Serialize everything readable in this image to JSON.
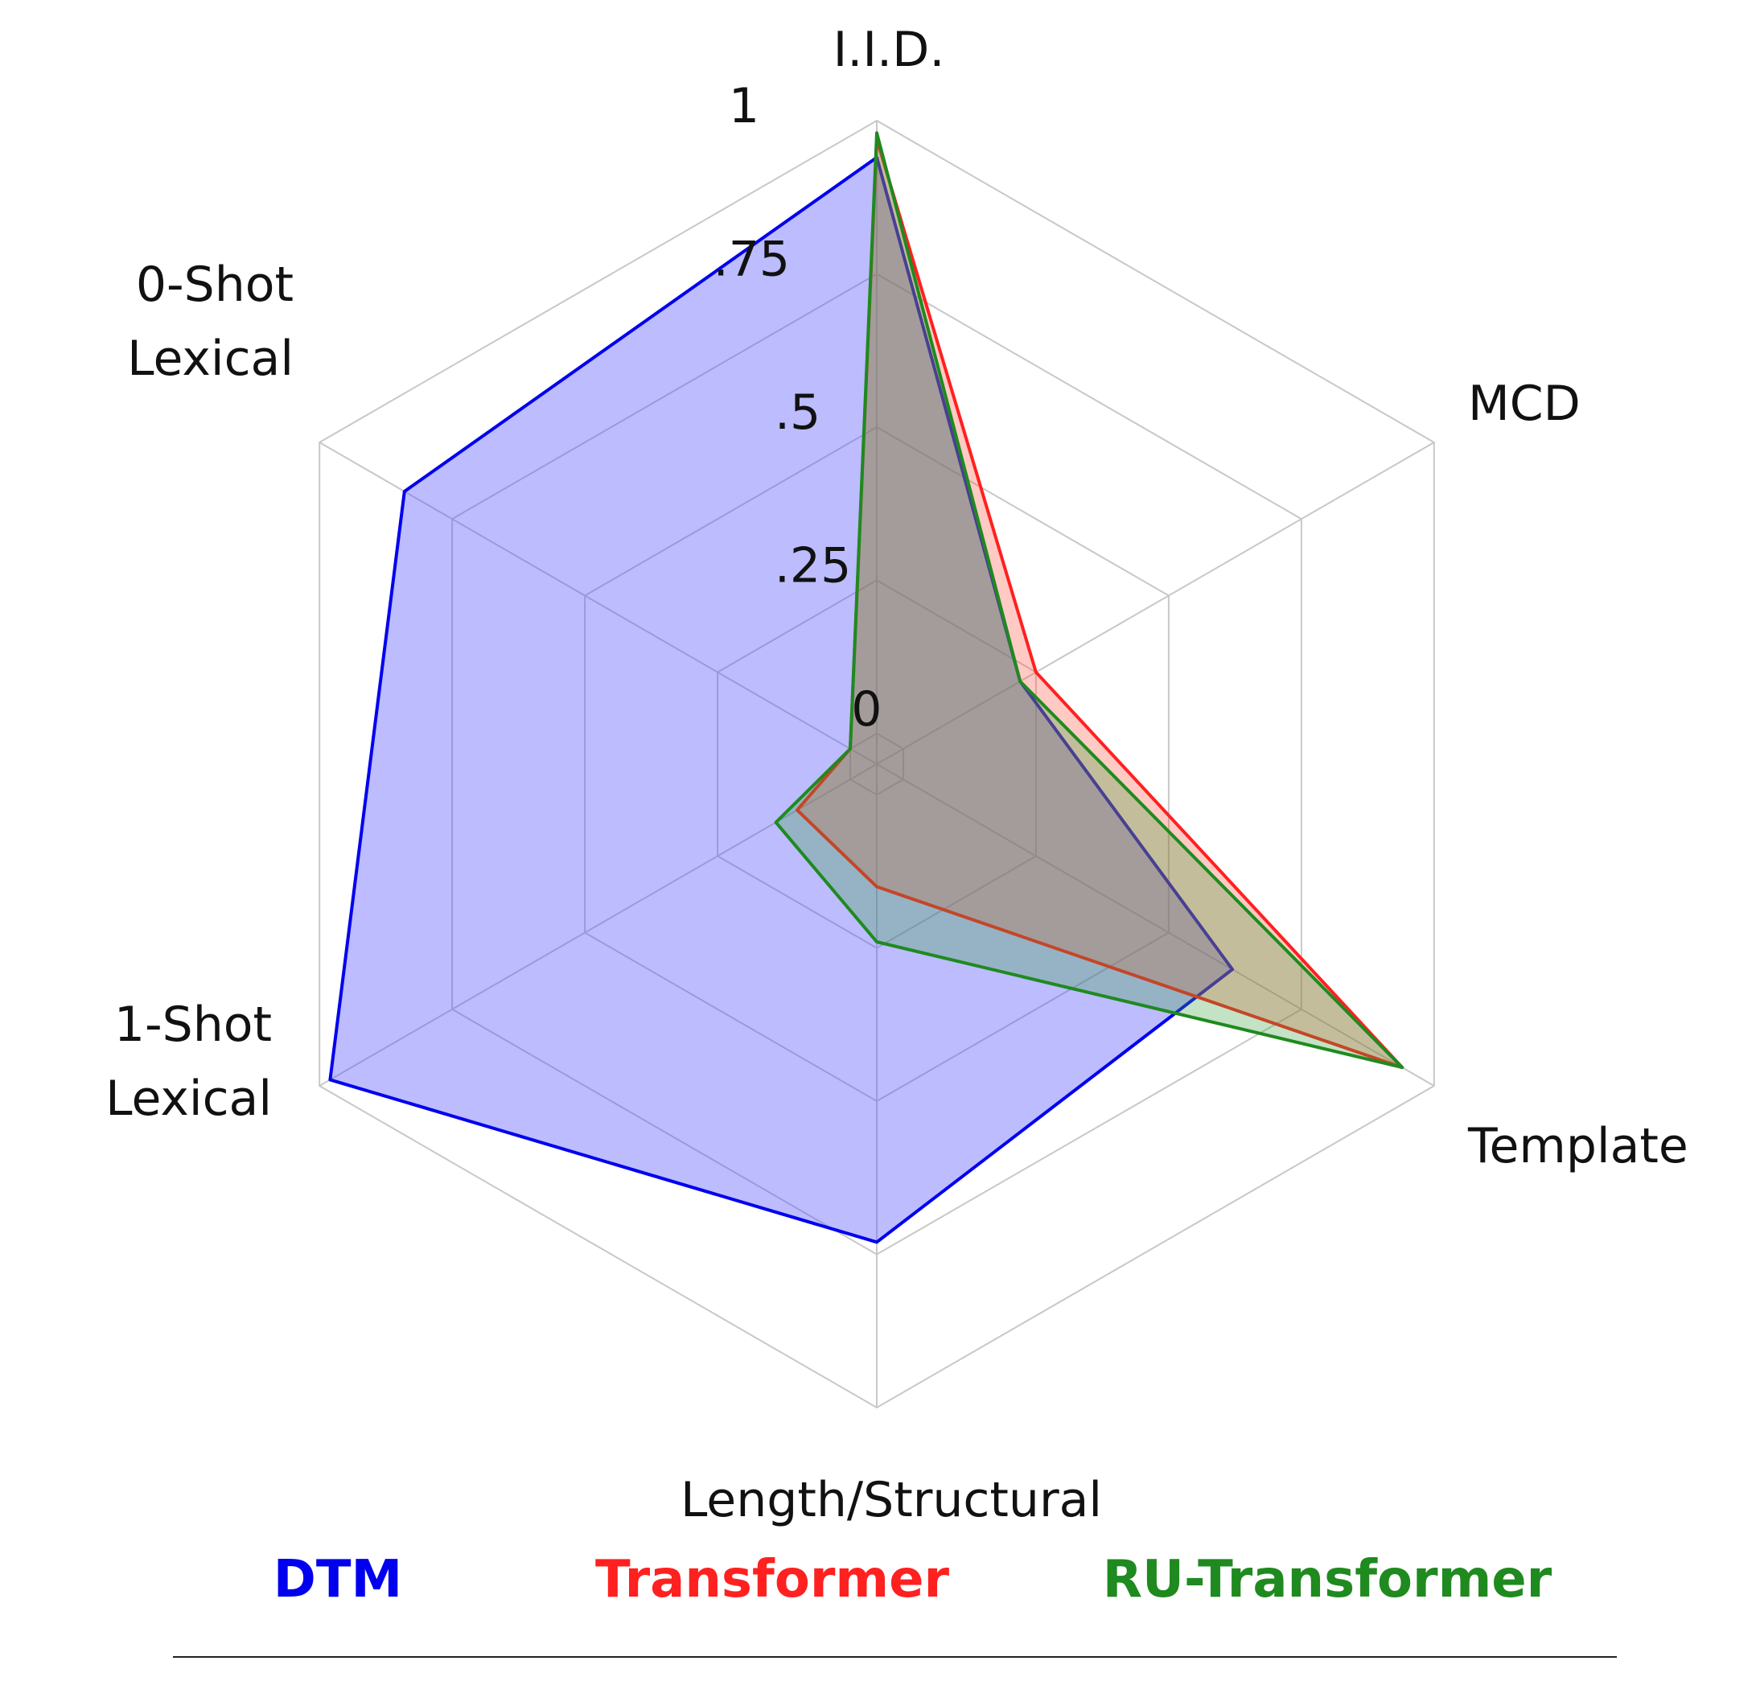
{
  "chart_data": {
    "type": "radar",
    "axes": [
      "I.I.D.",
      "MCD",
      "Template",
      "Length/Structural",
      "1-Shot Lexical",
      "0-Shot Lexical"
    ],
    "axis_label_lines": [
      [
        "I.I.D."
      ],
      [
        "MCD"
      ],
      [
        "Template"
      ],
      [
        "Length/Structural"
      ],
      [
        "1-Shot",
        "Lexical"
      ],
      [
        "0-Shot",
        "Lexical"
      ]
    ],
    "range": [
      -0.05,
      1
    ],
    "ticks": [
      0,
      0.25,
      0.5,
      0.75,
      1
    ],
    "tick_labels": [
      "0",
      ".25",
      ".5",
      ".75",
      "1"
    ],
    "grid": true,
    "legend_position": "bottom",
    "series": [
      {
        "name": "DTM",
        "color": "#0000ee",
        "fill": "rgba(80,80,255,0.38)",
        "values": [
          0.94,
          0.22,
          0.62,
          0.73,
          0.98,
          0.84
        ]
      },
      {
        "name": "Transformer",
        "color": "#ff2020",
        "fill": "rgba(255,80,60,0.30)",
        "values": [
          0.97,
          0.25,
          0.94,
          0.15,
          0.1,
          0.0
        ]
      },
      {
        "name": "RU-Transformer",
        "color": "#1f8a1f",
        "fill": "rgba(60,160,60,0.30)",
        "values": [
          0.98,
          0.22,
          0.94,
          0.24,
          0.14,
          0.0
        ]
      }
    ]
  }
}
